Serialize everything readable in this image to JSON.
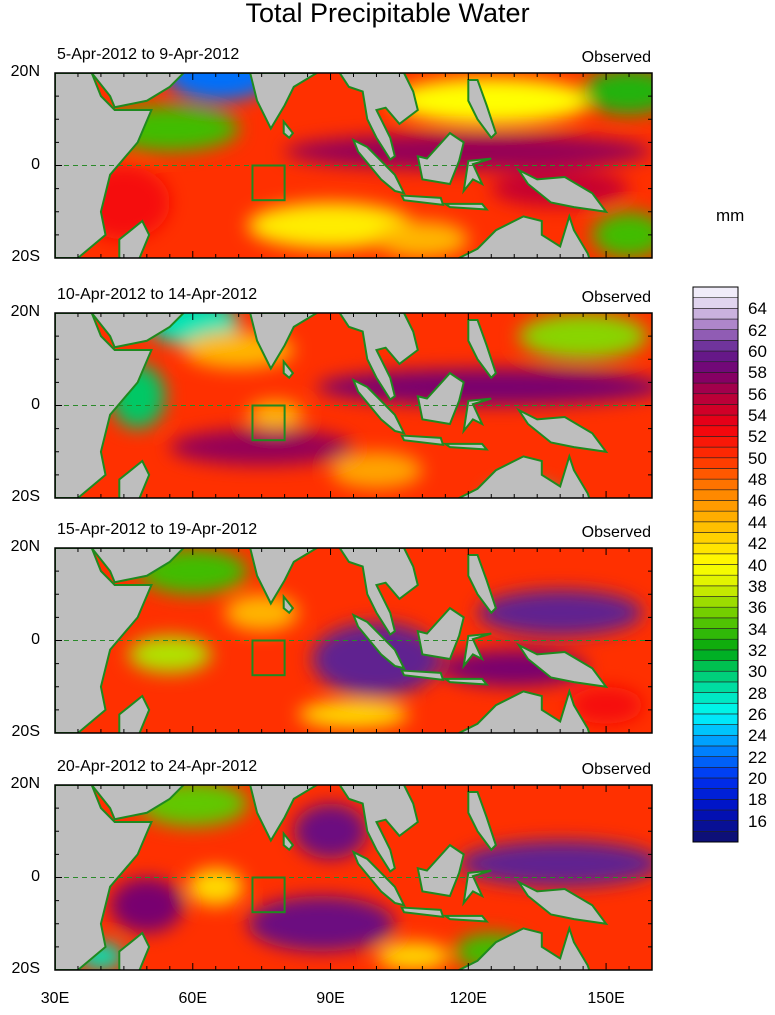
{
  "chart_data": {
    "type": "heatmap",
    "title": "Total Precipitable Water",
    "units": "mm",
    "y_ticks": [
      "20N",
      "0",
      "20S"
    ],
    "x_ticks": [
      "30E",
      "60E",
      "90E",
      "120E",
      "150E"
    ],
    "lon_range": [
      30,
      160
    ],
    "lat_range": [
      -20,
      20
    ],
    "panels": [
      {
        "period": "5-Apr-2012 to 9-Apr-2012",
        "label": "Observed"
      },
      {
        "period": "10-Apr-2012 to 14-Apr-2012",
        "label": "Observed"
      },
      {
        "period": "15-Apr-2012 to 19-Apr-2012",
        "label": "Observed"
      },
      {
        "period": "20-Apr-2012 to 24-Apr-2012",
        "label": "Observed"
      }
    ],
    "colorbar": {
      "labels": [
        "64",
        "62",
        "60",
        "58",
        "56",
        "54",
        "52",
        "50",
        "48",
        "46",
        "44",
        "42",
        "40",
        "38",
        "36",
        "34",
        "32",
        "30",
        "28",
        "26",
        "24",
        "22",
        "20",
        "18",
        "16"
      ],
      "range": [
        14,
        66
      ],
      "stops": [
        {
          "v": 14,
          "c": "#10106a"
        },
        {
          "v": 17,
          "c": "#0010c0"
        },
        {
          "v": 20,
          "c": "#0030f0"
        },
        {
          "v": 23,
          "c": "#0090ff"
        },
        {
          "v": 26,
          "c": "#00f8f8"
        },
        {
          "v": 29,
          "c": "#00d890"
        },
        {
          "v": 32,
          "c": "#00a810"
        },
        {
          "v": 35,
          "c": "#60c800"
        },
        {
          "v": 38,
          "c": "#d8f000"
        },
        {
          "v": 40,
          "c": "#ffff00"
        },
        {
          "v": 43,
          "c": "#ffc800"
        },
        {
          "v": 47,
          "c": "#ff8000"
        },
        {
          "v": 50,
          "c": "#ff3000"
        },
        {
          "v": 53,
          "c": "#f00010"
        },
        {
          "v": 56,
          "c": "#b00040"
        },
        {
          "v": 58,
          "c": "#780070"
        },
        {
          "v": 60,
          "c": "#602090"
        },
        {
          "v": 62,
          "c": "#a070c0"
        },
        {
          "v": 64,
          "c": "#d8c8e8"
        },
        {
          "v": 66,
          "c": "#f8f8ff"
        }
      ]
    }
  }
}
